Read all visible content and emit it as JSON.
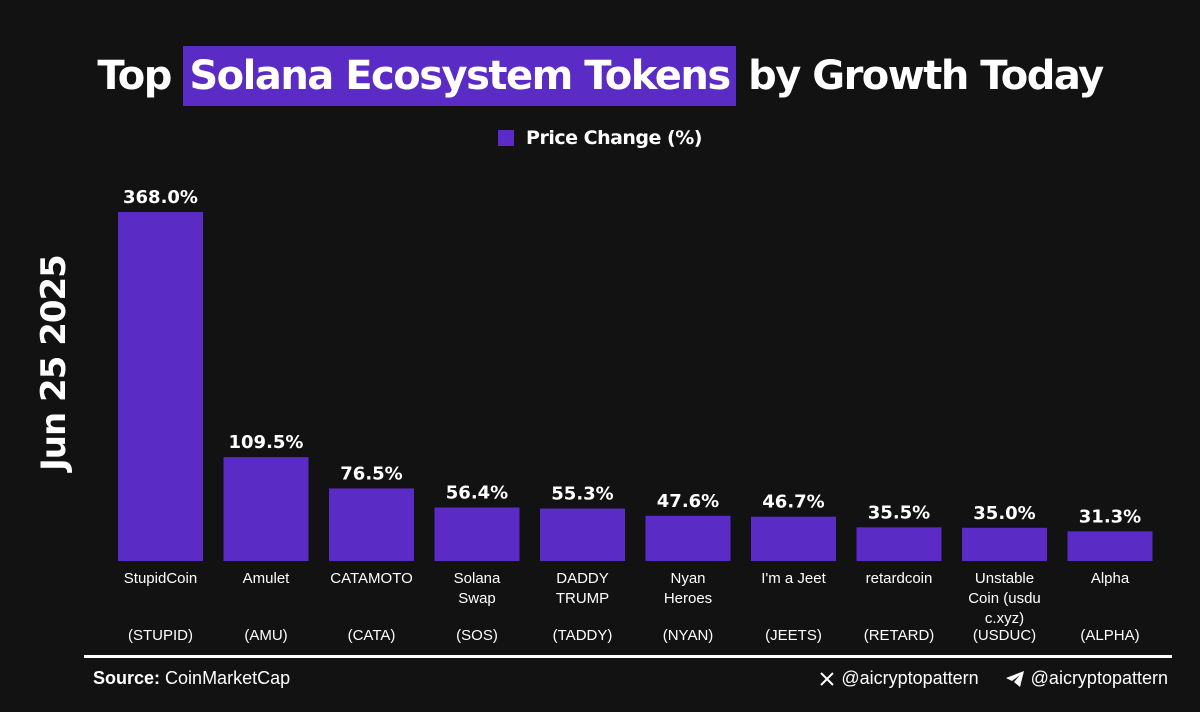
{
  "title": {
    "before": "Top ",
    "highlight": "Solana Ecosystem Tokens",
    "after": " by Growth Today"
  },
  "legend": {
    "label": "Price Change (%)"
  },
  "side_label": "Jun 25 2025",
  "footer": {
    "source_label": "Source:",
    "source_name": "CoinMarketCap",
    "x_handle": "@aicryptopattern",
    "telegram_handle": "@aicryptopattern"
  },
  "colors": {
    "bar": "#5b2bc6",
    "background": "#121212",
    "text": "#ffffff"
  },
  "icons": [
    "x-logo-icon",
    "telegram-icon"
  ],
  "chart_data": {
    "type": "bar",
    "title": "Top Solana Ecosystem Tokens by Growth Today",
    "xlabel": "",
    "ylabel": "",
    "series": [
      {
        "name": "Price Change (%)",
        "values": [
          368.0,
          109.5,
          76.5,
          56.4,
          55.3,
          47.6,
          46.7,
          35.5,
          35.0,
          31.3
        ]
      }
    ],
    "categories": [
      {
        "name": [
          "StupidCoin"
        ],
        "ticker": "(STUPID)",
        "value_label": "368.0%"
      },
      {
        "name": [
          "Amulet"
        ],
        "ticker": "(AMU)",
        "value_label": "109.5%"
      },
      {
        "name": [
          "CATAMOTO"
        ],
        "ticker": "(CATA)",
        "value_label": "76.5%"
      },
      {
        "name": [
          "Solana",
          "Swap"
        ],
        "ticker": "(SOS)",
        "value_label": "56.4%"
      },
      {
        "name": [
          "DADDY",
          "TRUMP"
        ],
        "ticker": "(TADDY)",
        "value_label": "55.3%"
      },
      {
        "name": [
          "Nyan",
          "Heroes"
        ],
        "ticker": "(NYAN)",
        "value_label": "47.6%"
      },
      {
        "name": [
          "I'm a Jeet"
        ],
        "ticker": "(JEETS)",
        "value_label": "46.7%"
      },
      {
        "name": [
          "retardcoin"
        ],
        "ticker": "(RETARD)",
        "value_label": "35.5%"
      },
      {
        "name": [
          "Unstable",
          "Coin (usdu",
          "c.xyz)"
        ],
        "ticker": "(USDUC)",
        "value_label": "35.0%"
      },
      {
        "name": [
          "Alpha"
        ],
        "ticker": "(ALPHA)",
        "value_label": "31.3%"
      }
    ],
    "ylim": [
      0,
      368
    ],
    "grid": false,
    "legend_position": "top-center"
  }
}
